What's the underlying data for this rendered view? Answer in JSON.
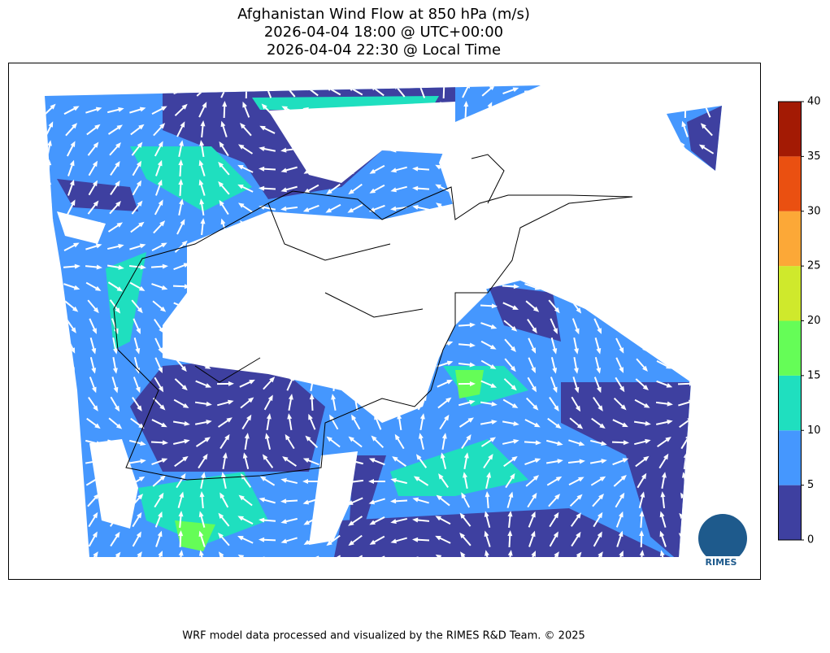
{
  "title_lines": [
    "Afghanistan Wind Flow at 850 hPa (m/s)",
    "2026-04-04 18:00 @ UTC+00:00",
    "2026-04-04 22:30 @ Local Time"
  ],
  "colorbar": {
    "ticks": [
      0,
      5,
      10,
      15,
      20,
      25,
      30,
      35,
      40
    ],
    "colors": [
      "#3e40a0",
      "#4597fe",
      "#1fdfbf",
      "#65fd57",
      "#cfe92c",
      "#fca837",
      "#ea5011",
      "#a31a04"
    ]
  },
  "footer": "WRF model data processed and visualized by the RIMES R&D Team. © 2025",
  "logo": {
    "label": "RIMES"
  }
}
